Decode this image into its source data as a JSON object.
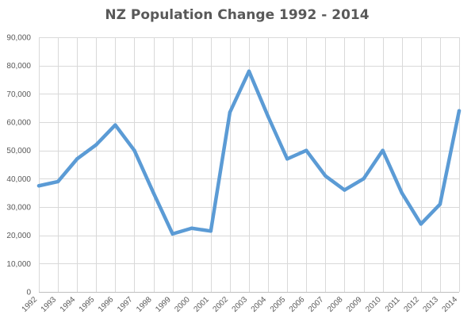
{
  "chart_data": {
    "type": "line",
    "title": "NZ Population Change 1992 - 2014",
    "xlabel": "",
    "ylabel": "",
    "ylim": [
      0,
      90000
    ],
    "yticks": [
      0,
      10000,
      20000,
      30000,
      40000,
      50000,
      60000,
      70000,
      80000,
      90000
    ],
    "ytick_labels": [
      "0",
      "10,000",
      "20,000",
      "30,000",
      "40,000",
      "50,000",
      "60,000",
      "70,000",
      "80,000",
      "90,000"
    ],
    "categories": [
      "1992",
      "1993",
      "1994",
      "1995",
      "1996",
      "1997",
      "1998",
      "1999",
      "2000",
      "2001",
      "2002",
      "2003",
      "2004",
      "2005",
      "2006",
      "2007",
      "2008",
      "2009",
      "2010",
      "2011",
      "2012",
      "2013",
      "2014"
    ],
    "series": [
      {
        "color": "#5b9bd5",
        "values": [
          37500,
          39000,
          47000,
          52000,
          59000,
          50000,
          35000,
          20500,
          22500,
          21500,
          63500,
          78000,
          62000,
          47000,
          50000,
          41000,
          36000,
          40000,
          50000,
          35000,
          24000,
          31000,
          64000
        ]
      }
    ],
    "grid": true,
    "legend": "none"
  }
}
